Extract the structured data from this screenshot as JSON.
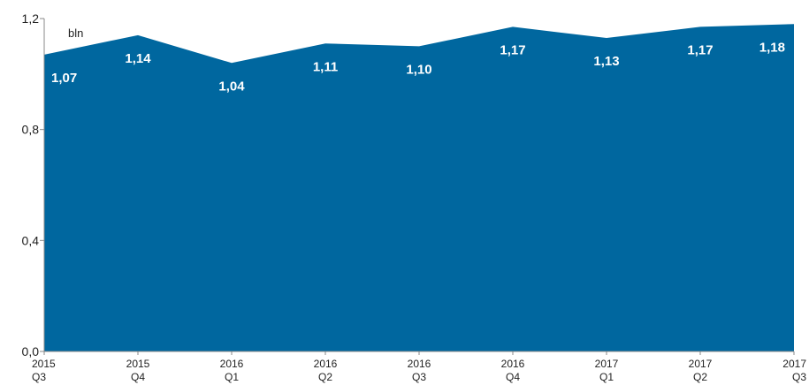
{
  "chart_data": {
    "type": "area",
    "unit_label": "bln",
    "categories": [
      {
        "year": "2015",
        "quarter": "Q3"
      },
      {
        "year": "2015",
        "quarter": "Q4"
      },
      {
        "year": "2016",
        "quarter": "Q1"
      },
      {
        "year": "2016",
        "quarter": "Q2"
      },
      {
        "year": "2016",
        "quarter": "Q3"
      },
      {
        "year": "2016",
        "quarter": "Q4"
      },
      {
        "year": "2017",
        "quarter": "Q1"
      },
      {
        "year": "2017",
        "quarter": "Q2"
      },
      {
        "year": "2017",
        "quarter": "Q3"
      }
    ],
    "values": [
      1.07,
      1.14,
      1.04,
      1.11,
      1.1,
      1.17,
      1.13,
      1.17,
      1.18
    ],
    "data_labels": [
      "1,07",
      "1,14",
      "1,04",
      "1,11",
      "1,10",
      "1,17",
      "1,13",
      "1,17",
      "1,18"
    ],
    "yticks": [
      {
        "value": 0.0,
        "label": "0,0"
      },
      {
        "value": 0.4,
        "label": "0,4"
      },
      {
        "value": 0.8,
        "label": "0,8"
      },
      {
        "value": 1.2,
        "label": "1,2"
      }
    ],
    "ylim": [
      0,
      1.2
    ],
    "fill_color": "#00679f",
    "grid": false,
    "legend": false
  }
}
